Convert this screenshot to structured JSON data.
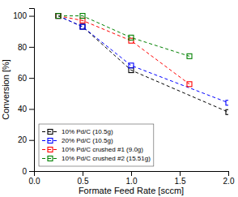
{
  "chart_data": {
    "type": "line",
    "xlabel": "Formate Feed Rate [sccm]",
    "ylabel": "Conversion [%]",
    "series": [
      {
        "name": "10% Pd/C (10.5g)",
        "color": "black",
        "x": [
          0.25,
          0.5,
          1.0,
          2.0
        ],
        "values": [
          100,
          93,
          65,
          38
        ]
      },
      {
        "name": "20% Pd/C (10.5g)",
        "color": "blue",
        "x": [
          0.25,
          0.5,
          1.0,
          2.0
        ],
        "values": [
          100,
          93,
          68,
          44
        ]
      },
      {
        "name": "10% Pd/C crushed #1 (9.0g)",
        "color": "red",
        "x": [
          0.25,
          0.5,
          1.0,
          1.6
        ],
        "values": [
          100,
          97,
          84,
          56
        ]
      },
      {
        "name": "10% Pd/C crushed #2 (15.51g)",
        "color": "green",
        "x": [
          0.25,
          0.5,
          1.0,
          1.6
        ],
        "values": [
          100,
          100,
          86,
          74
        ]
      }
    ],
    "xlim": [
      0,
      2.0
    ],
    "ylim": [
      0,
      105
    ],
    "xticks": [
      {
        "value": 0,
        "label": "0.0"
      },
      0.5,
      {
        "value": 1.0,
        "label": "1.0"
      },
      1.5,
      {
        "value": 2.0,
        "label": "2.0"
      }
    ],
    "yticks": [
      0,
      20,
      40,
      60,
      80,
      100
    ],
    "marker": "square",
    "line_style": "dashed",
    "legend": "lower left",
    "grid": false
  }
}
